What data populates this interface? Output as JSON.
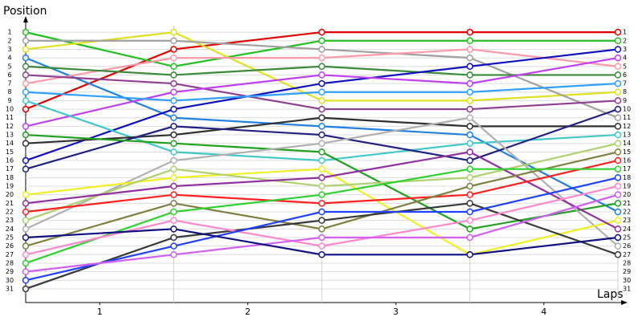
{
  "chart_data": {
    "type": "line",
    "y_label": "Position",
    "x_label": "Laps",
    "x": [
      0,
      1,
      2,
      3,
      4
    ],
    "xlim": [
      0,
      4
    ],
    "xticks": [
      {
        "value": 0.5,
        "label": "1"
      },
      {
        "value": 1.5,
        "label": "2"
      },
      {
        "value": 2.5,
        "label": "3"
      },
      {
        "value": 3.5,
        "label": "4"
      }
    ],
    "ylim": [
      32.6,
      -0.7
    ],
    "yticks": [
      1,
      2,
      3,
      4,
      5,
      6,
      7,
      8,
      9,
      10,
      11,
      12,
      13,
      14,
      15,
      16,
      17,
      18,
      19,
      20,
      21,
      22,
      23,
      24,
      25,
      26,
      27,
      28,
      29,
      30,
      31
    ],
    "grid": true,
    "series": [
      {
        "color": "#e00000",
        "values": [
          10,
          3,
          1,
          1,
          1
        ]
      },
      {
        "color": "#22c022",
        "values": [
          1,
          5,
          2,
          2,
          2
        ]
      },
      {
        "color": "#e0e020",
        "values": [
          3,
          1,
          9,
          9,
          8
        ]
      },
      {
        "color": "#a0a0a0",
        "values": [
          2,
          2,
          3,
          4,
          11
        ]
      },
      {
        "color": "#2080e0",
        "values": [
          4,
          11,
          12,
          13,
          22
        ]
      },
      {
        "color": "#ff99aa",
        "values": [
          7,
          4,
          4,
          3,
          5
        ]
      },
      {
        "color": "#904090",
        "values": [
          6,
          7,
          10,
          10,
          9
        ]
      },
      {
        "color": "#3a8a3a",
        "values": [
          5,
          6,
          5,
          6,
          6
        ]
      },
      {
        "color": "#1010c0",
        "values": [
          16,
          10,
          7,
          5,
          3
        ]
      },
      {
        "color": "#c040f0",
        "values": [
          12,
          8,
          6,
          7,
          4
        ]
      },
      {
        "color": "#30a0ff",
        "values": [
          8,
          9,
          8,
          8,
          7
        ]
      },
      {
        "color": "#40c8c8",
        "values": [
          9,
          15,
          16,
          14,
          13
        ]
      },
      {
        "color": "#303030",
        "values": [
          14,
          13,
          11,
          12,
          12
        ]
      },
      {
        "color": "#202080",
        "values": [
          17,
          12,
          13,
          16,
          10
        ]
      },
      {
        "color": "#20a020",
        "values": [
          13,
          14,
          15,
          24,
          21
        ]
      },
      {
        "color": "#b0b0b0",
        "values": [
          24,
          16,
          14,
          11,
          26
        ]
      },
      {
        "color": "#f0f020",
        "values": [
          20,
          18,
          17,
          27,
          23
        ]
      },
      {
        "color": "#b0d070",
        "values": [
          23,
          17,
          19,
          18,
          14
        ]
      },
      {
        "color": "#9030a0",
        "values": [
          21,
          19,
          18,
          15,
          24
        ]
      },
      {
        "color": "#ff2020",
        "values": [
          22,
          20,
          21,
          20,
          16
        ]
      },
      {
        "color": "#808040",
        "values": [
          26,
          21,
          24,
          19,
          15
        ]
      },
      {
        "color": "#30d030",
        "values": [
          28,
          22,
          20,
          17,
          17
        ]
      },
      {
        "color": "#383838",
        "values": [
          31,
          25,
          23,
          21,
          27
        ]
      },
      {
        "color": "#ff88cc",
        "values": [
          27,
          23,
          26,
          23,
          19
        ]
      },
      {
        "color": "#2040ff",
        "values": [
          30,
          26,
          22,
          22,
          18
        ]
      },
      {
        "color": "#d060f0",
        "values": [
          29,
          27,
          25,
          25,
          20
        ]
      },
      {
        "color": "#101080",
        "values": [
          25,
          24,
          27,
          27,
          25
        ]
      }
    ]
  }
}
